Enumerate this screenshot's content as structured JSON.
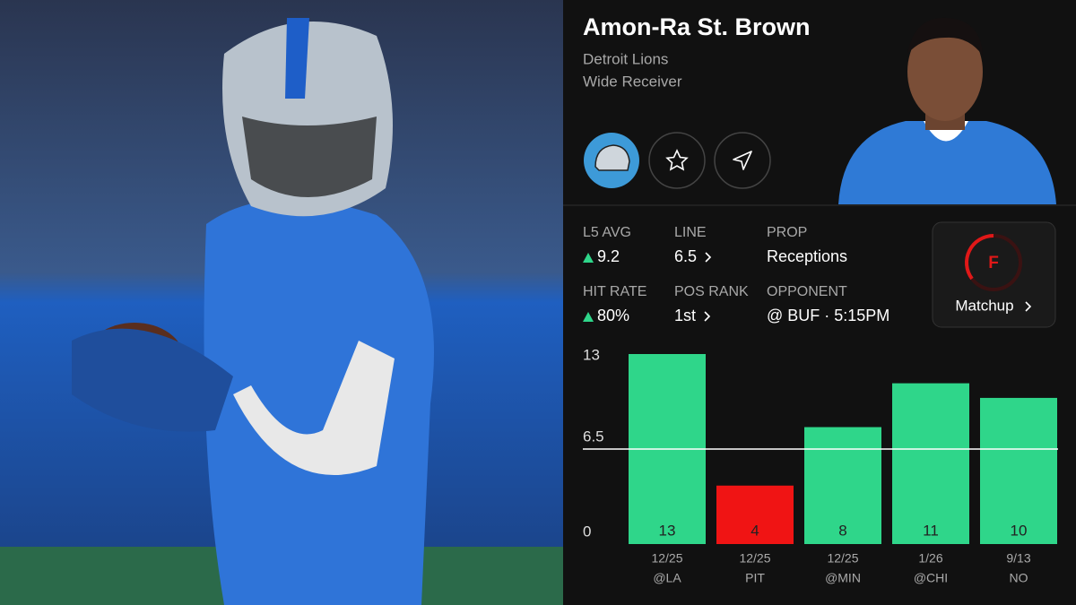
{
  "player": {
    "name": "Amon-Ra St. Brown",
    "team": "Detroit Lions",
    "position": "Wide Receiver"
  },
  "stats": [
    {
      "label": "L5 AVG",
      "value": "9.2"
    },
    {
      "label": "LINE",
      "value": "6.5"
    },
    {
      "label": "PROP",
      "value": "Receptions"
    },
    {
      "label": "HIT RATE",
      "value": "80%"
    },
    {
      "label": "POS RANK",
      "value": "1st"
    },
    {
      "label": "OPPONENT",
      "value": "@ BUF · 5:15PM"
    }
  ],
  "matchup": {
    "grade": "F",
    "label": "Matchup"
  },
  "chart_data": {
    "type": "bar",
    "categories": [
      "12/25",
      "12/25",
      "12/25",
      "1/26",
      "9/13"
    ],
    "opponents": [
      "@LA",
      "PIT",
      "@MIN",
      "@CHI",
      "NO"
    ],
    "values": [
      13,
      4,
      8,
      11,
      10
    ],
    "reference_line": 6.5,
    "color": "#2fd68a",
    "miss_color": "#f01414",
    "ylim": [
      0,
      13
    ],
    "yticks": [
      0,
      6.5,
      13
    ]
  }
}
